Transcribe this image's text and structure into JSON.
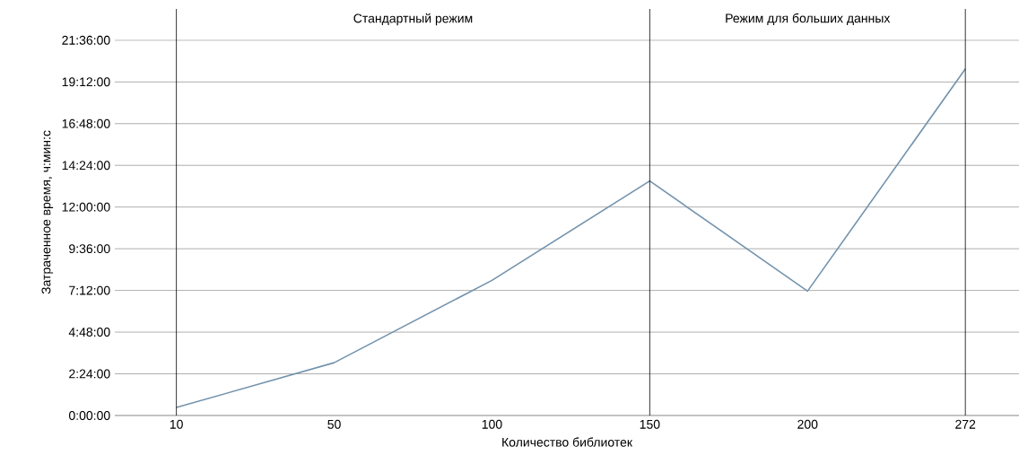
{
  "chart_data": {
    "type": "line",
    "xlabel": "Количество библиотек",
    "ylabel": "Затраченное время, ч:мин:с",
    "categories": [
      "10",
      "50",
      "100",
      "150",
      "200",
      "272"
    ],
    "series": [
      {
        "color": "#7393ad",
        "values": [
          0.46,
          3.04,
          7.78,
          13.5,
          7.16,
          19.95
        ]
      }
    ],
    "ylim": [
      0,
      23.4
    ],
    "yticks": [
      {
        "value": 0,
        "label": "0:00:00"
      },
      {
        "value": 2.4,
        "label": "2:24:00"
      },
      {
        "value": 4.8,
        "label": "4:48:00"
      },
      {
        "value": 7.2,
        "label": "7:12:00"
      },
      {
        "value": 9.6,
        "label": "9:36:00"
      },
      {
        "value": 12,
        "label": "12:00:00"
      },
      {
        "value": 14.4,
        "label": "14:24:00"
      },
      {
        "value": 16.8,
        "label": "16:48:00"
      },
      {
        "value": 19.2,
        "label": "19:12:00"
      },
      {
        "value": 21.6,
        "label": "21:36:00"
      }
    ],
    "ref_lines": [
      {
        "axis": "x",
        "value": "10",
        "color": "#000000"
      },
      {
        "axis": "x",
        "value": "150",
        "color": "#000000"
      },
      {
        "axis": "x",
        "value": "272",
        "color": "#000000"
      }
    ],
    "annotations": [
      "Стандартный режим",
      "Режим для больших данных"
    ],
    "grid": "y",
    "marker": "none",
    "line_style": "solid"
  }
}
